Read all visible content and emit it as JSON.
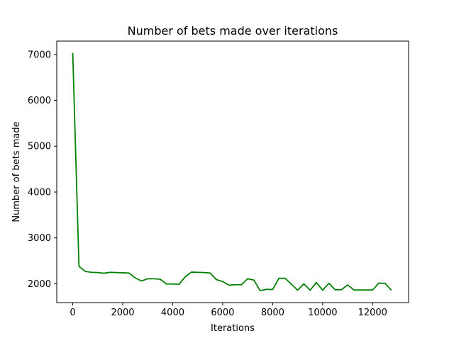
{
  "chart_data": {
    "type": "line",
    "title": "Number of bets made over iterations",
    "xlabel": "Iterations",
    "ylabel": "Number of bets made",
    "xlim": [
      -640,
      13440
    ],
    "ylim": [
      1590,
      7290
    ],
    "xticks": [
      0,
      2000,
      4000,
      6000,
      8000,
      10000,
      12000
    ],
    "yticks": [
      2000,
      3000,
      4000,
      5000,
      6000,
      7000
    ],
    "xtick_labels": [
      "0",
      "2000",
      "4000",
      "6000",
      "8000",
      "10000",
      "12000"
    ],
    "ytick_labels": [
      "2000",
      "3000",
      "4000",
      "5000",
      "6000",
      "7000"
    ],
    "grid": false,
    "series": [
      {
        "color": "#008000",
        "x": [
          0,
          250,
          500,
          750,
          1000,
          1250,
          1500,
          1750,
          2000,
          2250,
          2500,
          2750,
          3000,
          3250,
          3500,
          3750,
          4000,
          4250,
          4500,
          4750,
          5000,
          5250,
          5500,
          5750,
          6000,
          6250,
          6500,
          6750,
          7000,
          7250,
          7500,
          7750,
          8000,
          8250,
          8500,
          8750,
          9000,
          9250,
          9500,
          9750,
          10000,
          10250,
          10500,
          10750,
          11000,
          11250,
          11500,
          11750,
          12000,
          12250,
          12500,
          12750
        ],
        "y": [
          7030,
          2380,
          2270,
          2250,
          2245,
          2230,
          2250,
          2245,
          2240,
          2235,
          2130,
          2060,
          2110,
          2110,
          2100,
          1995,
          1995,
          1990,
          2150,
          2255,
          2250,
          2245,
          2235,
          2090,
          2050,
          1970,
          1980,
          1980,
          2110,
          2080,
          1850,
          1880,
          1875,
          2120,
          2120,
          1990,
          1860,
          2000,
          1860,
          2030,
          1860,
          2010,
          1870,
          1870,
          1975,
          1865,
          1865,
          1865,
          1865,
          2015,
          2010,
          1860
        ]
      }
    ]
  }
}
